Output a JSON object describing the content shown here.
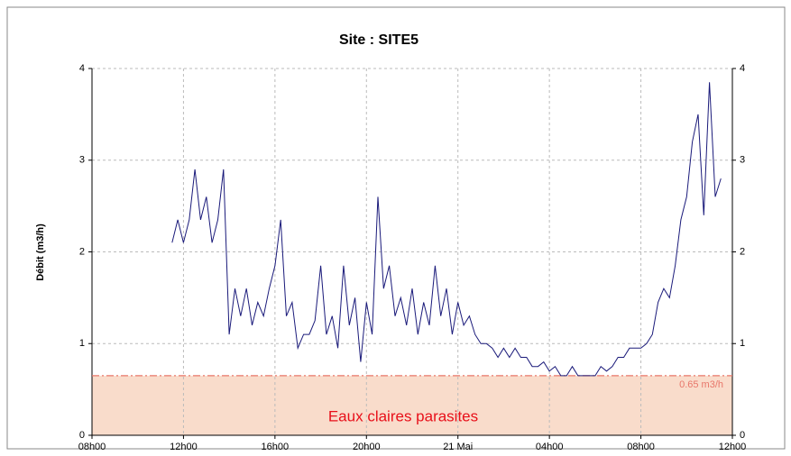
{
  "chart_data": {
    "type": "line",
    "title": "Site :  SITE5",
    "ylabel": "Débit  (m3/h)",
    "xlim": [
      0,
      28
    ],
    "xticks": [
      {
        "value": 0,
        "label": "08h00"
      },
      {
        "value": 4,
        "label": "12h00"
      },
      {
        "value": 8,
        "label": "16h00"
      },
      {
        "value": 12,
        "label": "20h00"
      },
      {
        "value": 16,
        "label": "21 Mai"
      },
      {
        "value": 20,
        "label": "04h00"
      },
      {
        "value": 24,
        "label": "08h00"
      },
      {
        "value": 28,
        "label": "12h00"
      }
    ],
    "ylim": [
      0,
      4
    ],
    "yticks": [
      0,
      1,
      2,
      3,
      4
    ],
    "y2lim": [
      0,
      4
    ],
    "y2ticks": [
      0,
      1,
      2,
      3,
      4
    ],
    "grid": true,
    "threshold": {
      "value": 0.65,
      "label": "0.65 m3/h",
      "color": "#e8766a",
      "zone_label": "Eaux claires parasites",
      "zone_color": "#f9dccb",
      "zone_text_color": "#e8101a"
    },
    "x": [
      3.5,
      3.75,
      4,
      4.25,
      4.5,
      4.75,
      5,
      5.25,
      5.5,
      5.75,
      6,
      6.25,
      6.5,
      6.75,
      7,
      7.25,
      7.5,
      7.75,
      8,
      8.25,
      8.5,
      8.75,
      9,
      9.25,
      9.5,
      9.75,
      10,
      10.25,
      10.5,
      10.75,
      11,
      11.25,
      11.5,
      11.75,
      12,
      12.25,
      12.5,
      12.75,
      13,
      13.25,
      13.5,
      13.75,
      14,
      14.25,
      14.5,
      14.75,
      15,
      15.25,
      15.5,
      15.75,
      16,
      16.25,
      16.5,
      16.75,
      17,
      17.25,
      17.5,
      17.75,
      18,
      18.25,
      18.5,
      18.75,
      19,
      19.25,
      19.5,
      19.75,
      20,
      20.25,
      20.5,
      20.75,
      21,
      21.25,
      21.5,
      21.75,
      22,
      22.25,
      22.5,
      22.75,
      23,
      23.25,
      23.5,
      23.75,
      24,
      24.25,
      24.5,
      24.75,
      25,
      25.25,
      25.5,
      25.75,
      26,
      26.25,
      26.5,
      26.75,
      27,
      27.25,
      27.5
    ],
    "series": [
      {
        "name": "Débit",
        "color": "#1a1a7a",
        "values": [
          2.1,
          2.35,
          2.1,
          2.35,
          2.9,
          2.35,
          2.6,
          2.1,
          2.35,
          2.9,
          1.1,
          1.6,
          1.3,
          1.6,
          1.2,
          1.45,
          1.3,
          1.6,
          1.85,
          2.35,
          1.3,
          1.45,
          0.95,
          1.1,
          1.1,
          1.25,
          1.85,
          1.1,
          1.3,
          0.95,
          1.85,
          1.2,
          1.5,
          0.8,
          1.45,
          1.1,
          2.6,
          1.6,
          1.85,
          1.3,
          1.5,
          1.2,
          1.6,
          1.1,
          1.45,
          1.2,
          1.85,
          1.3,
          1.6,
          1.1,
          1.45,
          1.2,
          1.3,
          1.1,
          1.0,
          1.0,
          0.95,
          0.85,
          0.95,
          0.85,
          0.95,
          0.85,
          0.85,
          0.75,
          0.75,
          0.8,
          0.7,
          0.75,
          0.65,
          0.65,
          0.75,
          0.65,
          0.65,
          0.65,
          0.65,
          0.75,
          0.7,
          0.75,
          0.85,
          0.85,
          0.95,
          0.95,
          0.95,
          1.0,
          1.1,
          1.45,
          1.6,
          1.5,
          1.85,
          2.35,
          2.6,
          3.2,
          3.5,
          2.4,
          3.85,
          2.6,
          2.8
        ]
      }
    ]
  }
}
